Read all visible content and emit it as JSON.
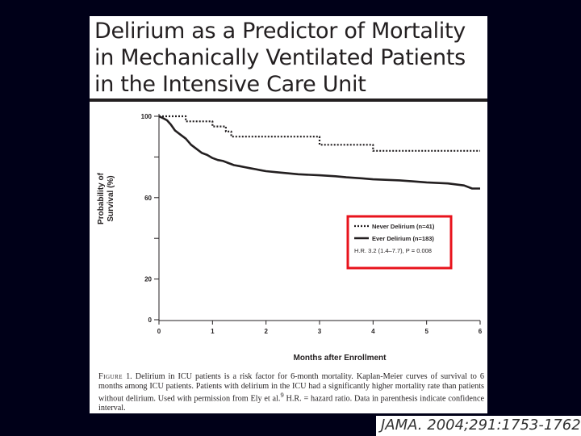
{
  "slide": {
    "title_lines": [
      "Delirium as a Predictor of Mortality",
      "in Mechanically Ventilated Patients",
      "in the Intensive Care Unit"
    ],
    "citation": "JAMA. 2004;291:1753-1762"
  },
  "caption": {
    "label": "Figure",
    "text": " 1. Delirium in ICU patients is a risk factor for 6-month mortality. Kaplan-Meier curves of survival to 6 months among ICU patients. Patients with delirium in the ICU had a significantly higher mortality rate than patients without delirium. Used with permission from Ely et al.",
    "superscript": "9",
    "text2": " H.R. = hazard ratio. Data in parenthesis indicate confidence interval."
  },
  "chart_data": {
    "type": "line",
    "xlabel": "Months after Enrollment",
    "ylabel_lines": [
      "Probability of",
      "Survival (%)"
    ],
    "xlim": [
      0,
      6
    ],
    "ylim": [
      0,
      100
    ],
    "x_ticks": [
      0,
      1,
      2,
      3,
      4,
      5,
      6
    ],
    "y_tick_labels": [
      0,
      20,
      60,
      100
    ],
    "y_minor_ticks": [
      40,
      80
    ],
    "legend_position": "right-middle",
    "highlight_color": "#e8131c",
    "annotation": "H.R. 3.2 (1.4–7.7), P = 0.008",
    "series": [
      {
        "name": "Never Delirium (n=41)",
        "style": "dotted",
        "points": [
          [
            0,
            100
          ],
          [
            0.5,
            100
          ],
          [
            0.5,
            97.5
          ],
          [
            1.0,
            97.5
          ],
          [
            1.0,
            95
          ],
          [
            1.25,
            95
          ],
          [
            1.25,
            92.5
          ],
          [
            1.35,
            92.5
          ],
          [
            1.35,
            90
          ],
          [
            3.0,
            90
          ],
          [
            3.0,
            86
          ],
          [
            4.0,
            86
          ],
          [
            4.0,
            83
          ],
          [
            6.0,
            83
          ]
        ]
      },
      {
        "name": "Ever Delirium (n=183)",
        "style": "solid",
        "points": [
          [
            0,
            100
          ],
          [
            0.08,
            99
          ],
          [
            0.15,
            98
          ],
          [
            0.22,
            96
          ],
          [
            0.3,
            93
          ],
          [
            0.4,
            91
          ],
          [
            0.5,
            89
          ],
          [
            0.6,
            86
          ],
          [
            0.7,
            84
          ],
          [
            0.8,
            82
          ],
          [
            0.9,
            81
          ],
          [
            1.0,
            79.5
          ],
          [
            1.1,
            78.5
          ],
          [
            1.2,
            78
          ],
          [
            1.3,
            77
          ],
          [
            1.4,
            76
          ],
          [
            1.5,
            75.5
          ],
          [
            1.6,
            75
          ],
          [
            1.7,
            74.5
          ],
          [
            1.8,
            74
          ],
          [
            1.9,
            73.5
          ],
          [
            2.0,
            73
          ],
          [
            2.2,
            72.5
          ],
          [
            2.4,
            72
          ],
          [
            2.6,
            71.5
          ],
          [
            3.0,
            71
          ],
          [
            3.3,
            70.5
          ],
          [
            3.5,
            70
          ],
          [
            3.8,
            69.5
          ],
          [
            4.0,
            69
          ],
          [
            4.5,
            68.5
          ],
          [
            5.0,
            67.5
          ],
          [
            5.4,
            67
          ],
          [
            5.7,
            66
          ],
          [
            5.85,
            64.5
          ],
          [
            6.0,
            64.5
          ]
        ]
      }
    ]
  }
}
